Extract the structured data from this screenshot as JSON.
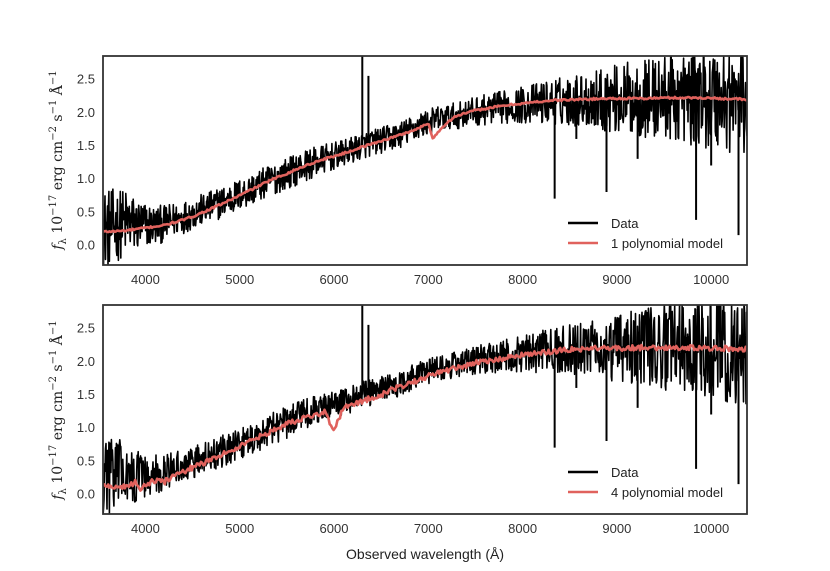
{
  "chart_data": [
    {
      "type": "line",
      "panel": "top",
      "xlim": [
        3550,
        10380
      ],
      "ylim": [
        -0.3,
        2.85
      ],
      "x_ticks": [
        4000,
        5000,
        6000,
        7000,
        8000,
        9000,
        10000
      ],
      "x_tick_labels": [
        "4000",
        "5000",
        "6000",
        "7000",
        "8000",
        "9000",
        "10000"
      ],
      "y_ticks": [
        0.0,
        0.5,
        1.0,
        1.5,
        2.0,
        2.5
      ],
      "y_tick_labels": [
        "0.0",
        "0.5",
        "1.0",
        "1.5",
        "2.0",
        "2.5"
      ],
      "ylabel": {
        "sym": "f",
        "sub": "λ",
        "unit_a": " 10",
        "exp_a": "−17",
        "unit_b": " erg cm",
        "exp_b": "−2",
        "unit_c": " s",
        "exp_c": "−1",
        "unit_d": " Å",
        "exp_d": "−1"
      },
      "legend_position": "lower-right",
      "series": [
        {
          "name": "Data",
          "color": "#000000",
          "x": [
            3600,
            3700,
            3800,
            3900,
            4000,
            4100,
            4200,
            4300,
            4400,
            4500,
            4700,
            4900,
            5100,
            5300,
            5500,
            5700,
            5900,
            6100,
            6300,
            6500,
            6700,
            6900,
            7100,
            7300,
            7500,
            7700,
            7900,
            8100,
            8300,
            8500,
            8700,
            8900,
            9100,
            9300,
            9500,
            9700,
            9900,
            10100,
            10300,
            10380
          ],
          "values": [
            0.25,
            0.3,
            0.35,
            0.3,
            0.3,
            0.3,
            0.32,
            0.38,
            0.42,
            0.48,
            0.58,
            0.7,
            0.82,
            0.96,
            1.08,
            1.2,
            1.3,
            1.38,
            1.5,
            1.58,
            1.66,
            1.8,
            1.9,
            1.95,
            2.02,
            2.06,
            2.1,
            2.13,
            2.16,
            2.18,
            2.2,
            2.2,
            2.21,
            2.21,
            2.22,
            2.22,
            2.22,
            2.21,
            2.2,
            2.2
          ],
          "noise": [
            0.6,
            0.55,
            0.5,
            0.42,
            0.35,
            0.3,
            0.28,
            0.26,
            0.25,
            0.24,
            0.24,
            0.24,
            0.24,
            0.24,
            0.24,
            0.24,
            0.22,
            0.2,
            0.2,
            0.2,
            0.2,
            0.2,
            0.2,
            0.2,
            0.22,
            0.24,
            0.26,
            0.3,
            0.34,
            0.38,
            0.42,
            0.5,
            0.55,
            0.6,
            0.65,
            0.7,
            0.75,
            0.8,
            0.85,
            0.85
          ],
          "spikes": [
            {
              "x": 6300,
              "y": 3.2
            },
            {
              "x": 6365,
              "y": 2.55
            },
            {
              "x": 8340,
              "y": 0.7
            },
            {
              "x": 8570,
              "y": 1.6
            },
            {
              "x": 8890,
              "y": 0.8
            },
            {
              "x": 9220,
              "y": 1.3
            },
            {
              "x": 9840,
              "y": 0.38
            },
            {
              "x": 10000,
              "y": 1.2
            },
            {
              "x": 10290,
              "y": 0.15
            }
          ]
        },
        {
          "name": "1 polynomial model",
          "color": "#e0625d",
          "x": [
            3550,
            3700,
            3800,
            3900,
            4000,
            4100,
            4200,
            4300,
            4400,
            4500,
            4700,
            4900,
            5100,
            5300,
            5500,
            5700,
            5900,
            6100,
            6300,
            6500,
            6700,
            6900,
            7000,
            7050,
            7100,
            7200,
            7300,
            7500,
            7700,
            7900,
            8100,
            8300,
            8500,
            8700,
            8900,
            9100,
            9300,
            9500,
            9700,
            9900,
            10100,
            10300,
            10380
          ],
          "values": [
            0.2,
            0.21,
            0.22,
            0.24,
            0.26,
            0.28,
            0.3,
            0.34,
            0.38,
            0.43,
            0.55,
            0.68,
            0.82,
            0.96,
            1.08,
            1.2,
            1.3,
            1.38,
            1.48,
            1.57,
            1.66,
            1.76,
            1.84,
            1.6,
            1.7,
            1.85,
            1.95,
            2.03,
            2.08,
            2.12,
            2.15,
            2.18,
            2.19,
            2.2,
            2.21,
            2.21,
            2.21,
            2.22,
            2.22,
            2.22,
            2.21,
            2.2,
            2.18
          ]
        }
      ]
    },
    {
      "type": "line",
      "panel": "bottom",
      "xlim": [
        3550,
        10380
      ],
      "ylim": [
        -0.3,
        2.85
      ],
      "x_ticks": [
        4000,
        5000,
        6000,
        7000,
        8000,
        9000,
        10000
      ],
      "x_tick_labels": [
        "4000",
        "5000",
        "6000",
        "7000",
        "8000",
        "9000",
        "10000"
      ],
      "y_ticks": [
        0.0,
        0.5,
        1.0,
        1.5,
        2.0,
        2.5
      ],
      "y_tick_labels": [
        "0.0",
        "0.5",
        "1.0",
        "1.5",
        "2.0",
        "2.5"
      ],
      "ylabel": {
        "sym": "f",
        "sub": "λ",
        "unit_a": " 10",
        "exp_a": "−17",
        "unit_b": " erg cm",
        "exp_b": "−2",
        "unit_c": " s",
        "exp_c": "−1",
        "unit_d": " Å",
        "exp_d": "−1"
      },
      "xlabel": "Observed wavelength (Å)",
      "legend_position": "lower-right",
      "series": [
        {
          "name": "Data",
          "color": "#000000",
          "x": [
            3600,
            3700,
            3800,
            3900,
            4000,
            4100,
            4200,
            4300,
            4400,
            4500,
            4700,
            4900,
            5100,
            5300,
            5500,
            5700,
            5900,
            6100,
            6300,
            6500,
            6700,
            6900,
            7100,
            7300,
            7500,
            7700,
            7900,
            8100,
            8300,
            8500,
            8700,
            8900,
            9100,
            9300,
            9500,
            9700,
            9900,
            10100,
            10300,
            10380
          ],
          "values": [
            0.25,
            0.3,
            0.35,
            0.3,
            0.3,
            0.3,
            0.32,
            0.38,
            0.42,
            0.48,
            0.58,
            0.7,
            0.82,
            0.96,
            1.08,
            1.2,
            1.3,
            1.38,
            1.5,
            1.58,
            1.66,
            1.8,
            1.9,
            1.95,
            2.02,
            2.06,
            2.1,
            2.13,
            2.16,
            2.18,
            2.2,
            2.2,
            2.21,
            2.21,
            2.22,
            2.22,
            2.22,
            2.21,
            2.2,
            2.2
          ],
          "noise": [
            0.6,
            0.55,
            0.5,
            0.42,
            0.35,
            0.3,
            0.28,
            0.26,
            0.25,
            0.24,
            0.24,
            0.24,
            0.24,
            0.24,
            0.24,
            0.24,
            0.22,
            0.2,
            0.2,
            0.2,
            0.2,
            0.2,
            0.2,
            0.2,
            0.22,
            0.24,
            0.26,
            0.3,
            0.34,
            0.38,
            0.42,
            0.5,
            0.55,
            0.6,
            0.65,
            0.7,
            0.75,
            0.8,
            0.85,
            0.85
          ],
          "spikes": [
            {
              "x": 6300,
              "y": 3.2
            },
            {
              "x": 6365,
              "y": 2.55
            },
            {
              "x": 8340,
              "y": 0.7
            },
            {
              "x": 8570,
              "y": 1.6
            },
            {
              "x": 8890,
              "y": 0.8
            },
            {
              "x": 9220,
              "y": 1.3
            },
            {
              "x": 9840,
              "y": 0.38
            },
            {
              "x": 10000,
              "y": 1.2
            },
            {
              "x": 10290,
              "y": 0.15
            }
          ]
        },
        {
          "name": "4 polynomial model",
          "color": "#e0625d",
          "x": [
            3550,
            3700,
            3800,
            3900,
            3950,
            4000,
            4100,
            4200,
            4300,
            4400,
            4500,
            4700,
            4900,
            5100,
            5300,
            5500,
            5700,
            5900,
            6000,
            6100,
            6200,
            6300,
            6500,
            6700,
            6900,
            7100,
            7300,
            7500,
            7700,
            7900,
            8100,
            8300,
            8500,
            8700,
            8900,
            9100,
            9300,
            9500,
            9700,
            9900,
            10100,
            10300,
            10380
          ],
          "values": [
            0.12,
            0.1,
            0.12,
            0.18,
            0.05,
            0.15,
            0.2,
            0.18,
            0.28,
            0.34,
            0.4,
            0.52,
            0.65,
            0.8,
            0.92,
            1.06,
            1.15,
            1.24,
            0.95,
            1.3,
            1.35,
            1.4,
            1.5,
            1.62,
            1.72,
            1.84,
            1.9,
            1.98,
            2.02,
            2.08,
            2.12,
            2.15,
            2.18,
            2.19,
            2.2,
            2.2,
            2.21,
            2.21,
            2.21,
            2.2,
            2.2,
            2.19,
            2.18
          ]
        }
      ]
    }
  ]
}
